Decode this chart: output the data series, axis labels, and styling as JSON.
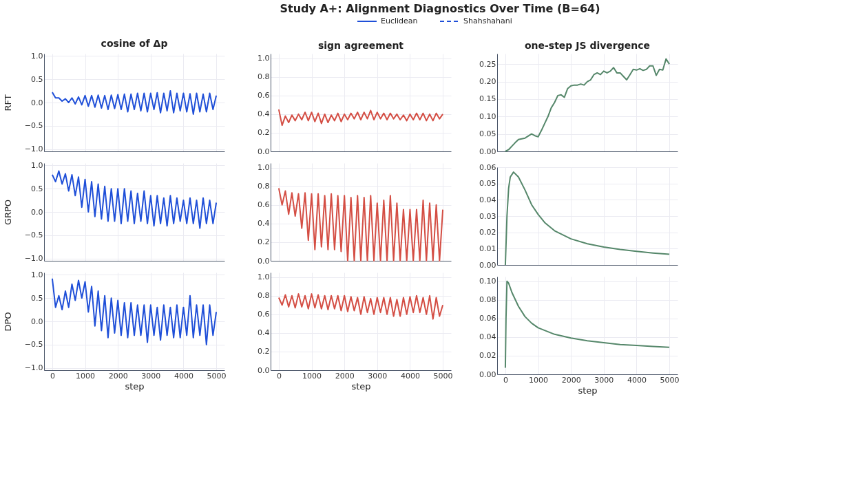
{
  "chart_data": [
    {
      "type": "line",
      "title": "cosine of Δp",
      "ylabel": "RFT",
      "tick_labels": "y",
      "grid": true,
      "xlim": [
        -250,
        5250
      ],
      "xticks": [
        0,
        1000,
        2000,
        3000,
        4000,
        5000
      ],
      "ylim": [
        -1.05,
        1.05
      ],
      "yticks": [
        {
          "value": -1,
          "label": "−1.0"
        },
        {
          "value": -0.5,
          "label": "−0.5"
        },
        {
          "value": 0,
          "label": "0.0"
        },
        {
          "value": 0.5,
          "label": "0.5"
        },
        {
          "value": 1,
          "label": "1.0"
        }
      ],
      "x": [
        0,
        100,
        200,
        300,
        400,
        500,
        600,
        700,
        800,
        900,
        1000,
        1100,
        1200,
        1300,
        1400,
        1500,
        1600,
        1700,
        1800,
        1900,
        2000,
        2100,
        2200,
        2300,
        2400,
        2500,
        2600,
        2700,
        2800,
        2900,
        3000,
        3100,
        3200,
        3300,
        3400,
        3500,
        3600,
        3700,
        3800,
        3900,
        4000,
        4100,
        4200,
        4300,
        4400,
        4500,
        4600,
        4700,
        4800,
        4900,
        5000
      ],
      "series": [
        {
          "color": "#1f4fd8",
          "values": [
            0.22,
            0.1,
            0.1,
            0.03,
            0.08,
            0.0,
            0.1,
            -0.03,
            0.12,
            -0.05,
            0.15,
            -0.08,
            0.15,
            -0.1,
            0.16,
            -0.12,
            0.15,
            -0.15,
            0.16,
            -0.13,
            0.17,
            -0.15,
            0.18,
            -0.2,
            0.18,
            -0.15,
            0.2,
            -0.18,
            0.2,
            -0.2,
            0.2,
            -0.15,
            0.21,
            -0.22,
            0.2,
            -0.18,
            0.25,
            -0.22,
            0.2,
            -0.18,
            0.2,
            -0.2,
            0.19,
            -0.25,
            0.2,
            -0.2,
            0.18,
            -0.2,
            0.2,
            -0.15,
            0.15
          ]
        }
      ]
    },
    {
      "type": "line",
      "title": "sign agreement",
      "tick_labels": "y",
      "grid": true,
      "xlim": [
        -250,
        5250
      ],
      "xticks": [
        0,
        1000,
        2000,
        3000,
        4000,
        5000
      ],
      "ylim": [
        0,
        1.05
      ],
      "yticks": [
        {
          "value": 0,
          "label": "0.0"
        },
        {
          "value": 0.2,
          "label": "0.2"
        },
        {
          "value": 0.4,
          "label": "0.4"
        },
        {
          "value": 0.6,
          "label": "0.6"
        },
        {
          "value": 0.8,
          "label": "0.8"
        },
        {
          "value": 1,
          "label": "1.0"
        }
      ],
      "x": [
        0,
        100,
        200,
        300,
        400,
        500,
        600,
        700,
        800,
        900,
        1000,
        1100,
        1200,
        1300,
        1400,
        1500,
        1600,
        1700,
        1800,
        1900,
        2000,
        2100,
        2200,
        2300,
        2400,
        2500,
        2600,
        2700,
        2800,
        2900,
        3000,
        3100,
        3200,
        3300,
        3400,
        3500,
        3600,
        3700,
        3800,
        3900,
        4000,
        4100,
        4200,
        4300,
        4400,
        4500,
        4600,
        4700,
        4800,
        4900,
        5000
      ],
      "series": [
        {
          "color": "#d44e44",
          "values": [
            0.45,
            0.28,
            0.38,
            0.31,
            0.39,
            0.33,
            0.4,
            0.34,
            0.42,
            0.33,
            0.42,
            0.32,
            0.41,
            0.3,
            0.4,
            0.31,
            0.39,
            0.33,
            0.41,
            0.32,
            0.4,
            0.34,
            0.41,
            0.35,
            0.42,
            0.34,
            0.42,
            0.35,
            0.44,
            0.34,
            0.42,
            0.35,
            0.41,
            0.34,
            0.41,
            0.35,
            0.4,
            0.34,
            0.39,
            0.33,
            0.4,
            0.34,
            0.41,
            0.34,
            0.41,
            0.33,
            0.4,
            0.33,
            0.41,
            0.35,
            0.4
          ]
        }
      ]
    },
    {
      "type": "line",
      "title": "one-step JS divergence",
      "tick_labels": "y",
      "grid": true,
      "xlim": [
        -250,
        5250
      ],
      "xticks": [
        0,
        1000,
        2000,
        3000,
        4000,
        5000
      ],
      "ylim": [
        0,
        0.28
      ],
      "yticks": [
        {
          "value": 0,
          "label": "0.00"
        },
        {
          "value": 0.05,
          "label": "0.05"
        },
        {
          "value": 0.1,
          "label": "0.10"
        },
        {
          "value": 0.15,
          "label": "0.15"
        },
        {
          "value": 0.2,
          "label": "0.20"
        },
        {
          "value": 0.25,
          "label": "0.25"
        }
      ],
      "x": [
        0,
        100,
        200,
        300,
        400,
        500,
        600,
        700,
        800,
        900,
        1000,
        1100,
        1200,
        1300,
        1400,
        1500,
        1600,
        1700,
        1800,
        1900,
        2000,
        2100,
        2200,
        2300,
        2400,
        2500,
        2600,
        2700,
        2800,
        2900,
        3000,
        3100,
        3200,
        3300,
        3400,
        3500,
        3600,
        3700,
        3800,
        3900,
        4000,
        4100,
        4200,
        4300,
        4400,
        4500,
        4600,
        4700,
        4800,
        4900,
        5000
      ],
      "series": [
        {
          "color": "#55876a",
          "values": [
            0,
            0.005,
            0.015,
            0.025,
            0.034,
            0.036,
            0.038,
            0.044,
            0.05,
            0.045,
            0.042,
            0.06,
            0.08,
            0.1,
            0.125,
            0.14,
            0.16,
            0.162,
            0.155,
            0.18,
            0.188,
            0.19,
            0.19,
            0.193,
            0.19,
            0.2,
            0.205,
            0.22,
            0.225,
            0.22,
            0.23,
            0.225,
            0.23,
            0.24,
            0.225,
            0.225,
            0.215,
            0.205,
            0.22,
            0.235,
            0.233,
            0.237,
            0.232,
            0.235,
            0.245,
            0.245,
            0.218,
            0.235,
            0.233,
            0.265,
            0.25
          ]
        }
      ]
    },
    {
      "type": "line",
      "ylabel": "GRPO",
      "tick_labels": "y",
      "grid": true,
      "xlim": [
        -250,
        5250
      ],
      "xticks": [
        0,
        1000,
        2000,
        3000,
        4000,
        5000
      ],
      "ylim": [
        -1.05,
        1.05
      ],
      "yticks": [
        {
          "value": -1,
          "label": "−1.0"
        },
        {
          "value": -0.5,
          "label": "−0.5"
        },
        {
          "value": 0,
          "label": "0.0"
        },
        {
          "value": 0.5,
          "label": "0.5"
        },
        {
          "value": 1,
          "label": "1.0"
        }
      ],
      "x": [
        0,
        100,
        200,
        300,
        400,
        500,
        600,
        700,
        800,
        900,
        1000,
        1100,
        1200,
        1300,
        1400,
        1500,
        1600,
        1700,
        1800,
        1900,
        2000,
        2100,
        2200,
        2300,
        2400,
        2500,
        2600,
        2700,
        2800,
        2900,
        3000,
        3100,
        3200,
        3300,
        3400,
        3500,
        3600,
        3700,
        3800,
        3900,
        4000,
        4100,
        4200,
        4300,
        4400,
        4500,
        4600,
        4700,
        4800,
        4900,
        5000
      ],
      "series": [
        {
          "color": "#1f4fd8",
          "values": [
            0.8,
            0.65,
            0.88,
            0.6,
            0.82,
            0.45,
            0.8,
            0.35,
            0.75,
            0.1,
            0.7,
            0.0,
            0.65,
            -0.1,
            0.6,
            -0.15,
            0.55,
            -0.2,
            0.5,
            -0.2,
            0.5,
            -0.25,
            0.5,
            -0.2,
            0.45,
            -0.25,
            0.4,
            -0.2,
            0.45,
            -0.25,
            0.35,
            -0.3,
            0.35,
            -0.25,
            0.3,
            -0.3,
            0.35,
            -0.25,
            0.3,
            -0.2,
            0.25,
            -0.25,
            0.3,
            -0.25,
            0.25,
            -0.35,
            0.3,
            -0.25,
            0.25,
            -0.25,
            0.2
          ]
        }
      ]
    },
    {
      "type": "line",
      "tick_labels": "y",
      "grid": true,
      "xlim": [
        -250,
        5250
      ],
      "xticks": [
        0,
        1000,
        2000,
        3000,
        4000,
        5000
      ],
      "ylim": [
        0,
        1.05
      ],
      "yticks": [
        {
          "value": 0,
          "label": "0.0"
        },
        {
          "value": 0.2,
          "label": "0.2"
        },
        {
          "value": 0.4,
          "label": "0.4"
        },
        {
          "value": 0.6,
          "label": "0.6"
        },
        {
          "value": 0.8,
          "label": "0.8"
        },
        {
          "value": 1,
          "label": "1.0"
        }
      ],
      "x": [
        0,
        100,
        200,
        300,
        400,
        500,
        600,
        700,
        800,
        900,
        1000,
        1100,
        1200,
        1300,
        1400,
        1500,
        1600,
        1700,
        1800,
        1900,
        2000,
        2100,
        2200,
        2300,
        2400,
        2500,
        2600,
        2700,
        2800,
        2900,
        3000,
        3100,
        3200,
        3300,
        3400,
        3500,
        3600,
        3700,
        3800,
        3900,
        4000,
        4100,
        4200,
        4300,
        4400,
        4500,
        4600,
        4700,
        4800,
        4900,
        5000
      ],
      "series": [
        {
          "color": "#d44e44",
          "values": [
            0.78,
            0.6,
            0.75,
            0.5,
            0.73,
            0.48,
            0.72,
            0.35,
            0.73,
            0.22,
            0.72,
            0.12,
            0.72,
            0.15,
            0.7,
            0.12,
            0.72,
            0.12,
            0.7,
            0.1,
            0.7,
            0.0,
            0.68,
            0.0,
            0.7,
            0.0,
            0.68,
            0.0,
            0.7,
            0.0,
            0.62,
            0.0,
            0.65,
            0.0,
            0.7,
            0.0,
            0.62,
            0.0,
            0.55,
            0.0,
            0.55,
            0.0,
            0.55,
            0.0,
            0.65,
            0.0,
            0.62,
            0.0,
            0.6,
            0.0,
            0.55
          ]
        }
      ]
    },
    {
      "type": "line",
      "tick_labels": "y",
      "grid": true,
      "xlim": [
        -250,
        5250
      ],
      "xticks": [
        0,
        1000,
        2000,
        3000,
        4000,
        5000
      ],
      "ylim": [
        0,
        0.06
      ],
      "yticks": [
        {
          "value": 0,
          "label": "0.00"
        },
        {
          "value": 0.01,
          "label": "0.01"
        },
        {
          "value": 0.02,
          "label": "0.02"
        },
        {
          "value": 0.03,
          "label": "0.03"
        },
        {
          "value": 0.04,
          "label": "0.04"
        },
        {
          "value": 0.05,
          "label": "0.05"
        },
        {
          "value": 0.06,
          "label": "0.06"
        }
      ],
      "x": [
        0,
        50,
        100,
        150,
        250,
        400,
        600,
        800,
        1000,
        1200,
        1500,
        2000,
        2500,
        3000,
        3500,
        4000,
        4500,
        5000
      ],
      "series": [
        {
          "color": "#55876a",
          "values": [
            0,
            0.03,
            0.047,
            0.054,
            0.057,
            0.054,
            0.046,
            0.037,
            0.031,
            0.026,
            0.021,
            0.016,
            0.013,
            0.011,
            0.0095,
            0.0083,
            0.0073,
            0.0065
          ]
        }
      ]
    },
    {
      "type": "line",
      "ylabel": "DPO",
      "xlabel": "step",
      "grid": true,
      "xlim": [
        -250,
        5250
      ],
      "xticks": [
        0,
        1000,
        2000,
        3000,
        4000,
        5000
      ],
      "ylim": [
        -1.05,
        1.05
      ],
      "yticks": [
        {
          "value": -1,
          "label": "−1.0"
        },
        {
          "value": -0.5,
          "label": "−0.5"
        },
        {
          "value": 0,
          "label": "0.0"
        },
        {
          "value": 0.5,
          "label": "0.5"
        },
        {
          "value": 1,
          "label": "1.0"
        }
      ],
      "x": [
        0,
        100,
        200,
        300,
        400,
        500,
        600,
        700,
        800,
        900,
        1000,
        1100,
        1200,
        1300,
        1400,
        1500,
        1600,
        1700,
        1800,
        1900,
        2000,
        2100,
        2200,
        2300,
        2400,
        2500,
        2600,
        2700,
        2800,
        2900,
        3000,
        3100,
        3200,
        3300,
        3400,
        3500,
        3600,
        3700,
        3800,
        3900,
        4000,
        4100,
        4200,
        4300,
        4400,
        4500,
        4600,
        4700,
        4800,
        4900,
        5000
      ],
      "series": [
        {
          "color": "#1f4fd8",
          "values": [
            0.92,
            0.3,
            0.55,
            0.25,
            0.65,
            0.3,
            0.8,
            0.45,
            0.88,
            0.5,
            0.85,
            0.2,
            0.75,
            -0.1,
            0.65,
            -0.2,
            0.55,
            -0.35,
            0.5,
            -0.25,
            0.45,
            -0.3,
            0.4,
            -0.35,
            0.4,
            -0.3,
            0.35,
            -0.3,
            0.35,
            -0.45,
            0.35,
            -0.3,
            0.3,
            -0.4,
            0.35,
            -0.3,
            0.3,
            -0.35,
            0.35,
            -0.35,
            0.3,
            -0.3,
            0.55,
            -0.35,
            0.35,
            -0.3,
            0.35,
            -0.5,
            0.35,
            -0.3,
            0.2
          ]
        }
      ]
    },
    {
      "type": "line",
      "xlabel": "step",
      "grid": true,
      "xlim": [
        -250,
        5250
      ],
      "xticks": [
        0,
        1000,
        2000,
        3000,
        4000,
        5000
      ],
      "ylim": [
        0,
        1.05
      ],
      "yticks": [
        {
          "value": 0,
          "label": "0.0"
        },
        {
          "value": 0.2,
          "label": "0.2"
        },
        {
          "value": 0.4,
          "label": "0.4"
        },
        {
          "value": 0.6,
          "label": "0.6"
        },
        {
          "value": 0.8,
          "label": "0.8"
        },
        {
          "value": 1,
          "label": "1.0"
        }
      ],
      "x": [
        0,
        100,
        200,
        300,
        400,
        500,
        600,
        700,
        800,
        900,
        1000,
        1100,
        1200,
        1300,
        1400,
        1500,
        1600,
        1700,
        1800,
        1900,
        2000,
        2100,
        2200,
        2300,
        2400,
        2500,
        2600,
        2700,
        2800,
        2900,
        3000,
        3100,
        3200,
        3300,
        3400,
        3500,
        3600,
        3700,
        3800,
        3900,
        4000,
        4100,
        4200,
        4300,
        4400,
        4500,
        4600,
        4700,
        4800,
        4900,
        5000
      ],
      "series": [
        {
          "color": "#d44e44",
          "values": [
            0.78,
            0.7,
            0.81,
            0.68,
            0.8,
            0.67,
            0.82,
            0.68,
            0.8,
            0.66,
            0.82,
            0.67,
            0.81,
            0.66,
            0.8,
            0.65,
            0.8,
            0.66,
            0.8,
            0.64,
            0.8,
            0.63,
            0.79,
            0.64,
            0.78,
            0.6,
            0.79,
            0.62,
            0.77,
            0.6,
            0.78,
            0.62,
            0.78,
            0.6,
            0.78,
            0.58,
            0.76,
            0.58,
            0.78,
            0.6,
            0.79,
            0.62,
            0.8,
            0.62,
            0.78,
            0.6,
            0.8,
            0.55,
            0.78,
            0.58,
            0.7
          ]
        }
      ]
    },
    {
      "type": "line",
      "xlabel": "step",
      "grid": true,
      "xlim": [
        -250,
        5250
      ],
      "xticks": [
        0,
        1000,
        2000,
        3000,
        4000,
        5000
      ],
      "ylim": [
        0,
        0.105
      ],
      "yticks": [
        {
          "value": 0,
          "label": "0.00"
        },
        {
          "value": 0.02,
          "label": "0.02"
        },
        {
          "value": 0.04,
          "label": "0.04"
        },
        {
          "value": 0.06,
          "label": "0.06"
        },
        {
          "value": 0.08,
          "label": "0.08"
        },
        {
          "value": 0.1,
          "label": "0.10"
        }
      ],
      "x": [
        0,
        20,
        50,
        100,
        200,
        400,
        600,
        800,
        1000,
        1500,
        2000,
        2500,
        3000,
        3500,
        4000,
        4500,
        5000
      ],
      "series": [
        {
          "color": "#55876a",
          "values": [
            0.007,
            0.06,
            0.1,
            0.098,
            0.088,
            0.073,
            0.062,
            0.055,
            0.05,
            0.043,
            0.039,
            0.036,
            0.034,
            0.032,
            0.031,
            0.03,
            0.029
          ]
        }
      ]
    },
    {
      "type": "other",
      "title": "Study A+: Alignment Diagnostics Over Time (B=64)",
      "legend": "top",
      "series": [
        {
          "name": "Euclidean",
          "color": "#1f4fd8",
          "line_style": "solid"
        },
        {
          "name": "Shahshahani",
          "color": "#1f4fd8",
          "line_style": "dashed"
        }
      ]
    }
  ]
}
